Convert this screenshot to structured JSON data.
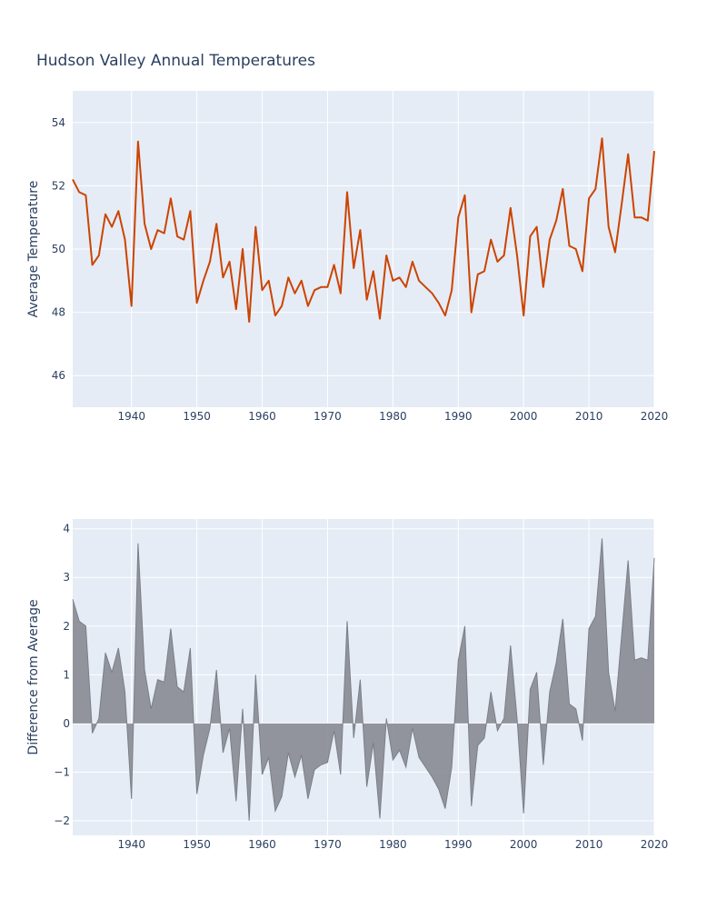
{
  "title": "Hudson Valley Annual Temperatures",
  "colors": {
    "plot_bg": "#e5ecf6",
    "grid": "#ffffff",
    "line": "#cc4400",
    "area_fill": "#888b93",
    "area_line": "#7b7f87",
    "text": "#2a3f5f"
  },
  "chart_data": [
    {
      "type": "line",
      "name": "top",
      "ylabel": "Average Temperature",
      "xlim": [
        1931,
        2020
      ],
      "ylim": [
        45,
        55
      ],
      "xticks": [
        1940,
        1950,
        1960,
        1970,
        1980,
        1990,
        2000,
        2010,
        2020
      ],
      "yticks": [
        46,
        48,
        50,
        52,
        54
      ],
      "grid": true,
      "series": [
        {
          "x": [
            1931,
            1932,
            1933,
            1934,
            1935,
            1936,
            1937,
            1938,
            1939,
            1940,
            1941,
            1942,
            1943,
            1944,
            1945,
            1946,
            1947,
            1948,
            1949,
            1950,
            1951,
            1952,
            1953,
            1954,
            1955,
            1956,
            1957,
            1958,
            1959,
            1960,
            1961,
            1962,
            1963,
            1964,
            1965,
            1966,
            1967,
            1968,
            1969,
            1970,
            1971,
            1972,
            1973,
            1974,
            1975,
            1976,
            1977,
            1978,
            1979,
            1980,
            1981,
            1982,
            1983,
            1984,
            1985,
            1986,
            1987,
            1988,
            1989,
            1990,
            1991,
            1992,
            1993,
            1994,
            1995,
            1996,
            1997,
            1998,
            1999,
            2000,
            2001,
            2002,
            2003,
            2004,
            2005,
            2006,
            2007,
            2008,
            2009,
            2010,
            2011,
            2012,
            2013,
            2014,
            2015,
            2016,
            2017,
            2018,
            2019,
            2020
          ],
          "values": [
            52.2,
            51.8,
            51.7,
            49.5,
            49.8,
            51.1,
            50.7,
            51.2,
            50.3,
            48.2,
            53.4,
            50.8,
            50.0,
            50.6,
            50.5,
            51.6,
            50.4,
            50.3,
            51.2,
            48.3,
            49.0,
            49.6,
            50.8,
            49.1,
            49.6,
            48.1,
            50.0,
            47.7,
            50.7,
            48.7,
            49.0,
            47.9,
            48.2,
            49.1,
            48.6,
            49.0,
            48.2,
            48.7,
            48.8,
            48.8,
            49.5,
            48.6,
            51.8,
            49.4,
            50.6,
            48.4,
            49.3,
            47.8,
            49.8,
            49.0,
            49.1,
            48.8,
            49.6,
            49.0,
            48.8,
            48.6,
            48.3,
            47.9,
            48.7,
            51.0,
            51.7,
            48.0,
            49.2,
            49.3,
            50.3,
            49.6,
            49.8,
            51.3,
            49.8,
            47.9,
            50.4,
            50.7,
            48.8,
            50.3,
            50.9,
            51.9,
            50.1,
            50.0,
            49.3,
            51.6,
            51.9,
            53.5,
            50.7,
            49.9,
            51.4,
            53.0,
            51.0,
            51.0,
            50.9,
            53.1
          ]
        }
      ]
    },
    {
      "type": "area",
      "name": "bottom",
      "ylabel": "Difference from Average",
      "xlim": [
        1931,
        2020
      ],
      "ylim": [
        -2.3,
        4.2
      ],
      "xticks": [
        1940,
        1950,
        1960,
        1970,
        1980,
        1990,
        2000,
        2010,
        2020
      ],
      "yticks": [
        -2,
        -1,
        0,
        1,
        2,
        3,
        4
      ],
      "ytick_labels": [
        "−2",
        "−1",
        "0",
        "1",
        "2",
        "3",
        "4"
      ],
      "grid": true,
      "series": [
        {
          "x": [
            1931,
            1932,
            1933,
            1934,
            1935,
            1936,
            1937,
            1938,
            1939,
            1940,
            1941,
            1942,
            1943,
            1944,
            1945,
            1946,
            1947,
            1948,
            1949,
            1950,
            1951,
            1952,
            1953,
            1954,
            1955,
            1956,
            1957,
            1958,
            1959,
            1960,
            1961,
            1962,
            1963,
            1964,
            1965,
            1966,
            1967,
            1968,
            1969,
            1970,
            1971,
            1972,
            1973,
            1974,
            1975,
            1976,
            1977,
            1978,
            1979,
            1980,
            1981,
            1982,
            1983,
            1984,
            1985,
            1986,
            1987,
            1988,
            1989,
            1990,
            1991,
            1992,
            1993,
            1994,
            1995,
            1996,
            1997,
            1998,
            1999,
            2000,
            2001,
            2002,
            2003,
            2004,
            2005,
            2006,
            2007,
            2008,
            2009,
            2010,
            2011,
            2012,
            2013,
            2014,
            2015,
            2016,
            2017,
            2018,
            2019,
            2020
          ],
          "values": [
            2.55,
            2.1,
            2.0,
            -0.2,
            0.1,
            1.45,
            1.05,
            1.55,
            0.65,
            -1.55,
            3.7,
            1.1,
            0.3,
            0.9,
            0.85,
            1.95,
            0.75,
            0.65,
            1.55,
            -1.45,
            -0.65,
            -0.1,
            1.1,
            -0.6,
            -0.1,
            -1.6,
            0.3,
            -2.0,
            1.0,
            -1.05,
            -0.7,
            -1.8,
            -1.5,
            -0.6,
            -1.1,
            -0.65,
            -1.55,
            -0.95,
            -0.85,
            -0.8,
            -0.15,
            -1.05,
            2.1,
            -0.3,
            0.9,
            -1.3,
            -0.4,
            -1.95,
            0.1,
            -0.75,
            -0.55,
            -0.9,
            -0.1,
            -0.7,
            -0.9,
            -1.1,
            -1.35,
            -1.75,
            -0.9,
            1.3,
            2.0,
            -1.7,
            -0.45,
            -0.3,
            0.65,
            -0.15,
            0.1,
            1.6,
            0.1,
            -1.85,
            0.7,
            1.05,
            -0.85,
            0.65,
            1.25,
            2.15,
            0.4,
            0.3,
            -0.35,
            1.95,
            2.2,
            3.8,
            1.05,
            0.25,
            1.8,
            3.35,
            1.3,
            1.35,
            1.3,
            3.4
          ]
        }
      ]
    }
  ]
}
